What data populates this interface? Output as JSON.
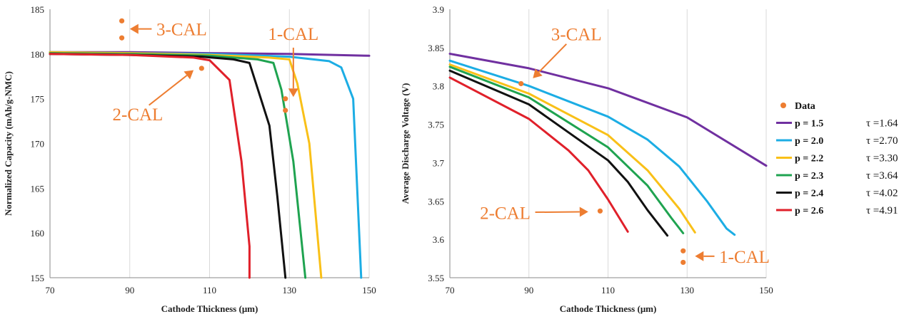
{
  "chart_data": [
    {
      "type": "line",
      "xlabel": "Cathode Thickness (μm)",
      "ylabel": "Normalized Capacity (mAh/g-NMC)",
      "xlim": [
        70,
        150
      ],
      "ylim": [
        155,
        185
      ],
      "xticks": [
        70,
        90,
        110,
        130,
        150
      ],
      "yticks": [
        155,
        160,
        165,
        170,
        175,
        180,
        185
      ],
      "series": [
        {
          "name": "p = 1.5",
          "color": "#7030A0",
          "x": [
            70,
            90,
            110,
            130,
            150
          ],
          "y": [
            180.2,
            180.2,
            180.1,
            180.0,
            179.8
          ]
        },
        {
          "name": "p = 2.0",
          "color": "#1CADE4",
          "x": [
            70,
            90,
            110,
            130,
            140,
            143,
            146,
            148
          ],
          "y": [
            180.2,
            180.1,
            180.0,
            179.7,
            179.2,
            178.5,
            175,
            155
          ]
        },
        {
          "name": "p = 2.2",
          "color": "#F9C018",
          "x": [
            70,
            90,
            110,
            125,
            130,
            132,
            135,
            138
          ],
          "y": [
            180.2,
            180.1,
            179.9,
            179.6,
            179.4,
            176.7,
            170,
            155
          ]
        },
        {
          "name": "p = 2.3",
          "color": "#1FA350",
          "x": [
            70,
            90,
            110,
            122,
            126,
            128,
            131,
            134
          ],
          "y": [
            180.1,
            180.0,
            179.8,
            179.4,
            179.0,
            176,
            168,
            155
          ]
        },
        {
          "name": "p = 2.4",
          "color": "#111111",
          "x": [
            70,
            90,
            108,
            116,
            120,
            125,
            127,
            129
          ],
          "y": [
            180.0,
            179.9,
            179.7,
            179.4,
            179.0,
            172,
            164,
            155
          ]
        },
        {
          "name": "p = 2.6",
          "color": "#E0202A",
          "x": [
            70,
            90,
            106,
            110,
            115,
            118,
            120,
            120
          ],
          "y": [
            180.0,
            179.9,
            179.6,
            179.3,
            177.1,
            168,
            158.5,
            155
          ]
        }
      ],
      "data_points": {
        "x": [
          88,
          88,
          108,
          129,
          129
        ],
        "y": [
          183.7,
          181.8,
          178.4,
          175.0,
          173.7
        ]
      },
      "annotations": [
        {
          "text": "3-CAL",
          "x": 103,
          "y": 182.8,
          "arrow_to": [
            90,
            182.8
          ]
        },
        {
          "text": "1-CAL",
          "x": 131,
          "y": 182.3,
          "arrow_to": [
            131,
            175.2
          ]
        },
        {
          "text": "2-CAL",
          "x": 92,
          "y": 173.3,
          "arrow_to": [
            106,
            178.2
          ]
        }
      ]
    },
    {
      "type": "line",
      "xlabel": "Cathode Thickness (μm)",
      "ylabel": "Average Discharge Voltage (V)",
      "xlim": [
        70,
        150
      ],
      "ylim": [
        3.55,
        3.9
      ],
      "xticks": [
        70,
        90,
        110,
        130,
        150
      ],
      "yticks": [
        3.55,
        3.6,
        3.65,
        3.7,
        3.75,
        3.8,
        3.85,
        3.9
      ],
      "ytick_labels": [
        "3.55",
        "3.6",
        "3.65",
        "3.7",
        "3.75",
        "3.8",
        "3.85",
        "3.9"
      ],
      "series": [
        {
          "name": "p = 1.5",
          "color": "#7030A0",
          "x": [
            70,
            90,
            110,
            130,
            150
          ],
          "y": [
            3.842,
            3.823,
            3.797,
            3.759,
            3.696
          ]
        },
        {
          "name": "p = 2.0",
          "color": "#1CADE4",
          "x": [
            70,
            90,
            110,
            120,
            128,
            135,
            140,
            142
          ],
          "y": [
            3.833,
            3.8,
            3.76,
            3.73,
            3.695,
            3.65,
            3.614,
            3.606
          ]
        },
        {
          "name": "p = 2.2",
          "color": "#F9C018",
          "x": [
            70,
            90,
            110,
            120,
            128,
            132
          ],
          "y": [
            3.828,
            3.79,
            3.736,
            3.69,
            3.64,
            3.609
          ]
        },
        {
          "name": "p = 2.3",
          "color": "#1FA350",
          "x": [
            70,
            90,
            110,
            120,
            126,
            129
          ],
          "y": [
            3.825,
            3.785,
            3.72,
            3.67,
            3.628,
            3.608
          ]
        },
        {
          "name": "p = 2.4",
          "color": "#111111",
          "x": [
            70,
            90,
            110,
            115,
            120,
            125
          ],
          "y": [
            3.82,
            3.776,
            3.703,
            3.675,
            3.638,
            3.605
          ]
        },
        {
          "name": "p = 2.6",
          "color": "#E0202A",
          "x": [
            70,
            90,
            100,
            105,
            110,
            115
          ],
          "y": [
            3.811,
            3.757,
            3.716,
            3.69,
            3.652,
            3.61
          ]
        }
      ],
      "data_points": {
        "x": [
          88,
          108,
          129,
          129
        ],
        "y": [
          3.803,
          3.637,
          3.585,
          3.57
        ]
      },
      "annotations": [
        {
          "text": "3-CAL",
          "x": 102,
          "y": 3.868,
          "arrow_to": [
            91,
            3.81
          ]
        },
        {
          "text": "2-CAL",
          "x": 84,
          "y": 3.635,
          "arrow_to": [
            105,
            3.636
          ]
        },
        {
          "text": "1-CAL",
          "x": 144.5,
          "y": 3.578,
          "arrow_to": [
            132,
            3.578
          ]
        }
      ]
    }
  ],
  "legend": {
    "data_label": "Data",
    "entries": [
      {
        "label": "p = 1.5",
        "tau": "τ =1.64",
        "color": "#7030A0"
      },
      {
        "label": "p = 2.0",
        "tau": "τ =2.70",
        "color": "#1CADE4"
      },
      {
        "label": "p = 2.2",
        "tau": "τ =3.30",
        "color": "#F9C018"
      },
      {
        "label": "p = 2.3",
        "tau": "τ =3.64",
        "color": "#1FA350"
      },
      {
        "label": "p = 2.4",
        "tau": "τ =4.02",
        "color": "#111111"
      },
      {
        "label": "p = 2.6",
        "tau": "τ =4.91",
        "color": "#E0202A"
      }
    ]
  },
  "colors": {
    "data_points": "#ED7D31",
    "annotation": "#ED7D31",
    "axis": "#888888",
    "grid": "#d9d9d9"
  }
}
